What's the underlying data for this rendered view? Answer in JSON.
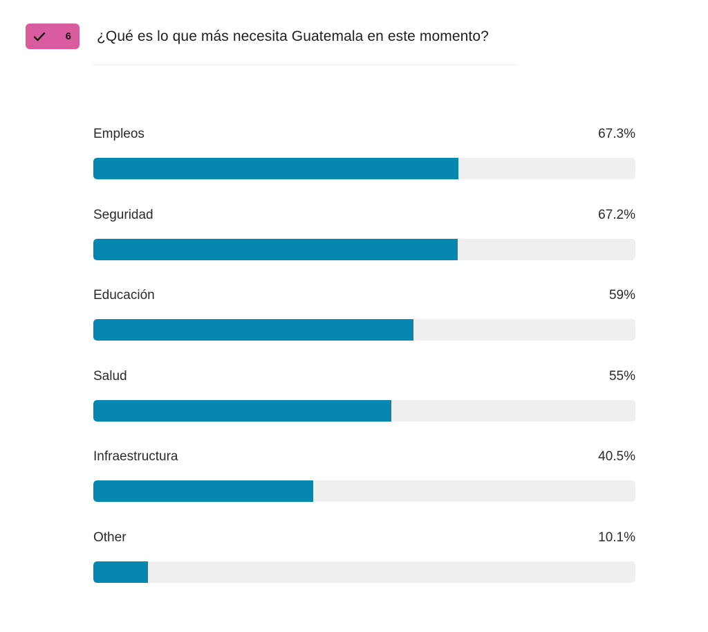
{
  "header": {
    "badge_count": "6",
    "question": "¿Qué es lo que más necesita Guatemala en este momento?",
    "badge_icon": "check-icon",
    "badge_color": "#d95c9e"
  },
  "colors": {
    "bar_fill": "#0687b0",
    "bar_track": "#efefef"
  },
  "chart_data": {
    "type": "bar",
    "orientation": "horizontal",
    "title": "¿Qué es lo que más necesita Guatemala en este momento?",
    "categories": [
      "Empleos",
      "Seguridad",
      "Educación",
      "Salud",
      "Infraestructura",
      "Other"
    ],
    "values": [
      67.3,
      67.2,
      59,
      55,
      40.5,
      10.1
    ],
    "value_labels": [
      "67.3%",
      "67.2%",
      "59%",
      "55%",
      "40.5%",
      "10.1%"
    ],
    "unit": "%",
    "xlim": [
      0,
      100
    ],
    "grid": false,
    "legend": "none"
  }
}
